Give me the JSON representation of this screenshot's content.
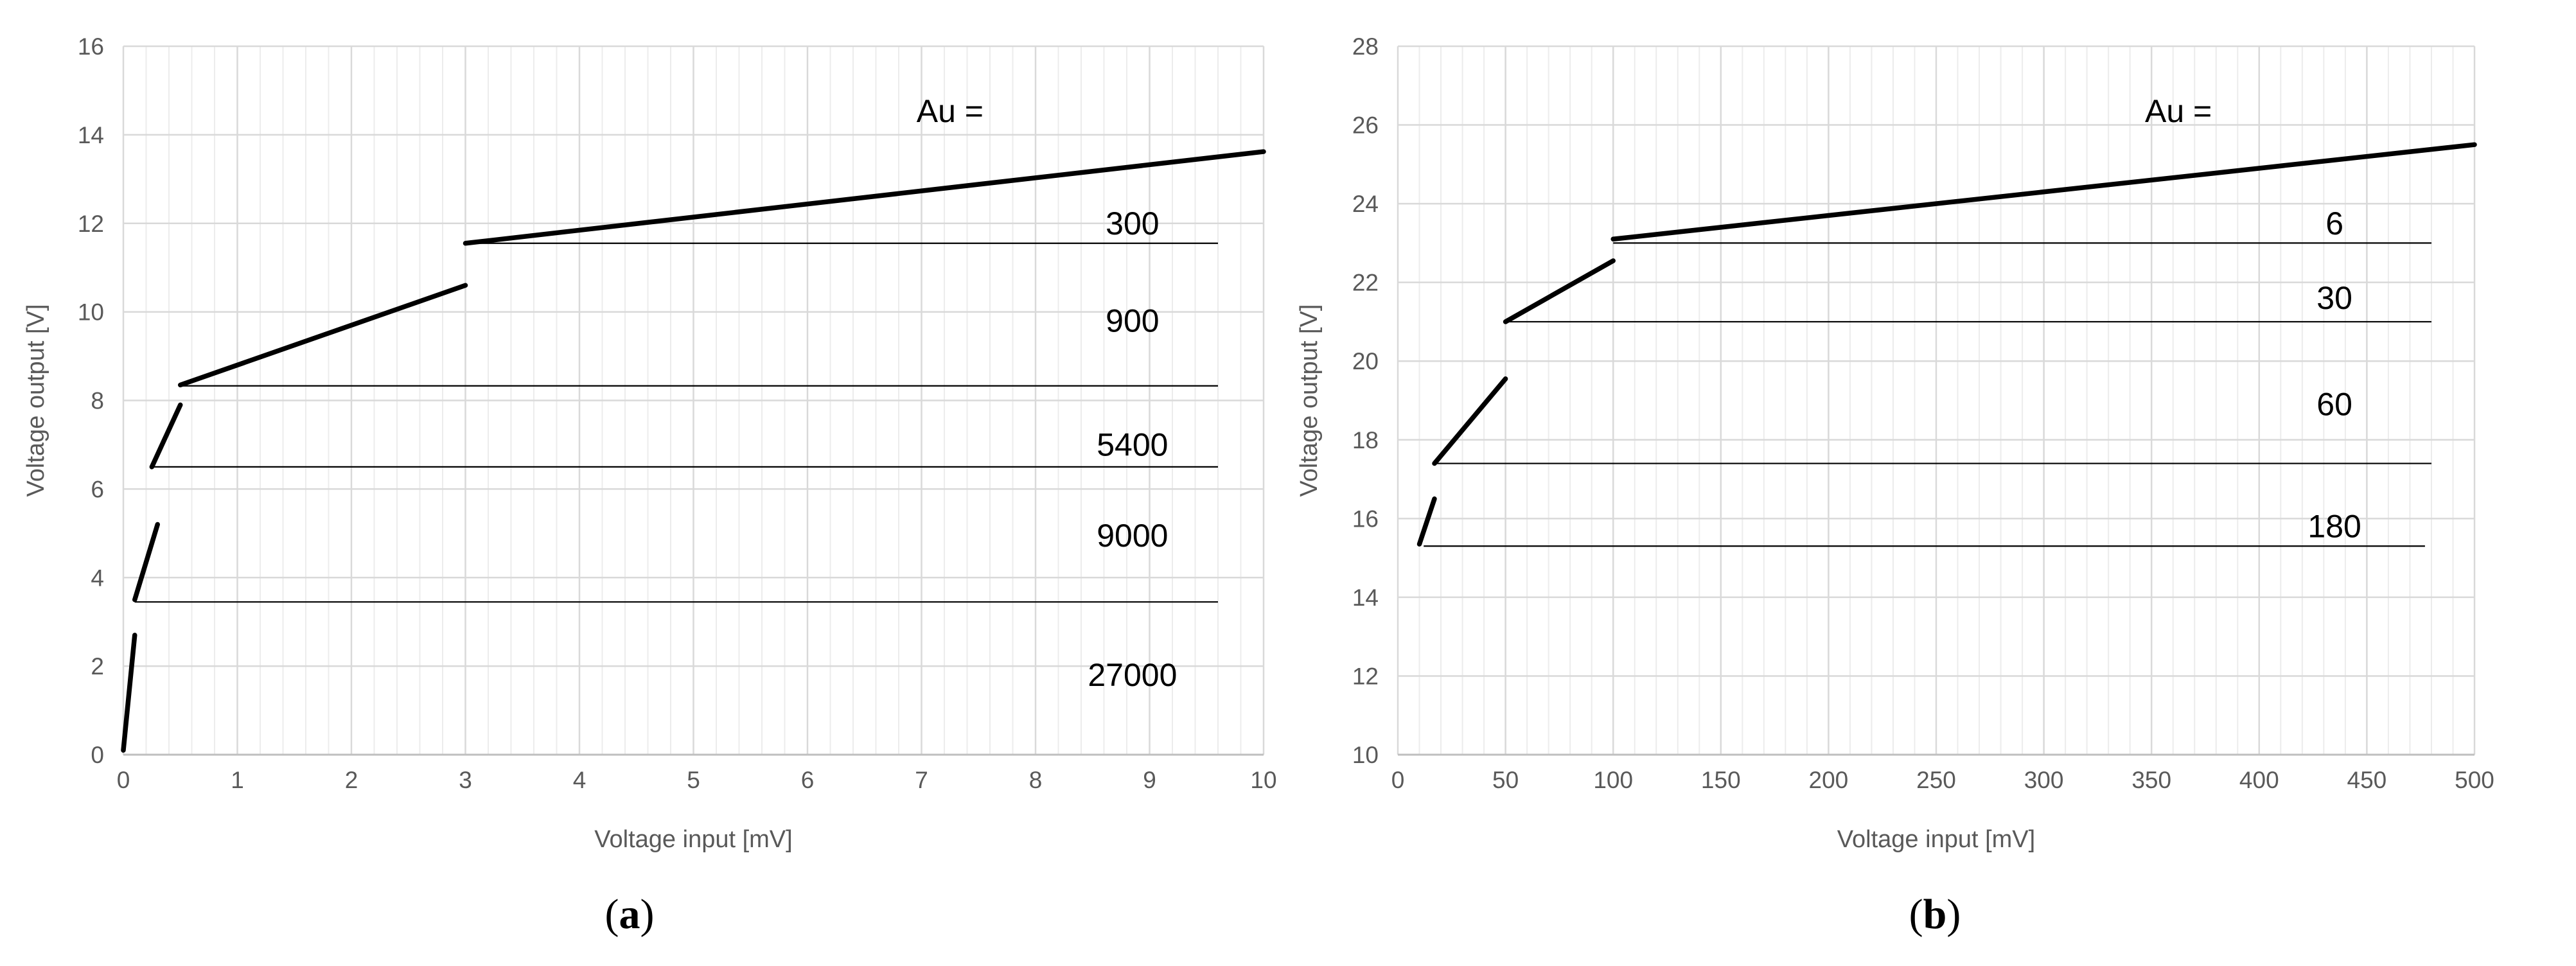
{
  "chart_data": [
    {
      "type": "line",
      "panel_label": "a",
      "xlabel": "Voltage input [mV]",
      "ylabel": "Voltage output  [V]",
      "xlim": [
        0,
        10
      ],
      "ylim": [
        0,
        16
      ],
      "x_ticks": [
        0,
        1,
        2,
        3,
        4,
        5,
        6,
        7,
        8,
        9,
        10
      ],
      "y_ticks": [
        0,
        2,
        4,
        6,
        8,
        10,
        12,
        14,
        16
      ],
      "x_minor_step": 0.2,
      "grid": true,
      "annotation": "Au =",
      "series": [
        {
          "gain": "27000",
          "x": [
            0.0,
            0.1
          ],
          "y": [
            0.1,
            2.7
          ]
        },
        {
          "gain": "9000",
          "x": [
            0.1,
            0.3
          ],
          "y": [
            3.5,
            5.2
          ]
        },
        {
          "gain": "5400",
          "x": [
            0.25,
            0.5
          ],
          "y": [
            6.5,
            7.9
          ]
        },
        {
          "gain": "900",
          "x": [
            0.5,
            3.0
          ],
          "y": [
            8.35,
            10.6
          ]
        },
        {
          "gain": "300",
          "x": [
            3.0,
            10.0
          ],
          "y": [
            11.55,
            13.62
          ]
        }
      ],
      "reference_lines": [
        {
          "y": 11.55,
          "x_start": 3.0,
          "x_end": 9.6
        },
        {
          "y": 8.33,
          "x_start": 0.5,
          "x_end": 9.6
        },
        {
          "y": 6.5,
          "x_start": 0.25,
          "x_end": 9.6
        },
        {
          "y": 3.45,
          "x_start": 0.1,
          "x_end": 9.6
        }
      ],
      "gain_labels": [
        {
          "text": "300",
          "x": 8.85,
          "y": 12.0
        },
        {
          "text": "900",
          "x": 8.85,
          "y": 9.8
        },
        {
          "text": "5400",
          "x": 8.85,
          "y": 7.0
        },
        {
          "text": "9000",
          "x": 8.85,
          "y": 4.95
        },
        {
          "text": "27000",
          "x": 8.85,
          "y": 1.8
        }
      ]
    },
    {
      "type": "line",
      "panel_label": "b",
      "xlabel": "Voltage input [mV]",
      "ylabel": "Voltage output  [V]",
      "xlim": [
        0,
        500
      ],
      "ylim": [
        10,
        28
      ],
      "x_ticks": [
        0,
        50,
        100,
        150,
        200,
        250,
        300,
        350,
        400,
        450,
        500
      ],
      "y_ticks": [
        10,
        12,
        14,
        16,
        18,
        20,
        22,
        24,
        26,
        28
      ],
      "x_minor_step": 10,
      "grid": true,
      "annotation": "Au =",
      "series": [
        {
          "gain": "180",
          "x": [
            10,
            17
          ],
          "y": [
            15.35,
            16.5
          ]
        },
        {
          "gain": "60",
          "x": [
            17,
            50
          ],
          "y": [
            17.4,
            19.55
          ]
        },
        {
          "gain": "30",
          "x": [
            50,
            100
          ],
          "y": [
            21.0,
            22.55
          ]
        },
        {
          "gain": "6",
          "x": [
            100,
            500
          ],
          "y": [
            23.1,
            25.5
          ]
        }
      ],
      "reference_lines": [
        {
          "y": 23.0,
          "x_start": 100,
          "x_end": 480
        },
        {
          "y": 21.0,
          "x_start": 50,
          "x_end": 480
        },
        {
          "y": 17.4,
          "x_start": 17,
          "x_end": 480
        },
        {
          "y": 15.3,
          "x_start": 12,
          "x_end": 477
        }
      ],
      "gain_labels": [
        {
          "text": "6",
          "x": 435,
          "y": 23.5
        },
        {
          "text": "30",
          "x": 435,
          "y": 21.6
        },
        {
          "text": "60",
          "x": 435,
          "y": 18.9
        },
        {
          "text": "180",
          "x": 435,
          "y": 15.8
        }
      ]
    }
  ]
}
